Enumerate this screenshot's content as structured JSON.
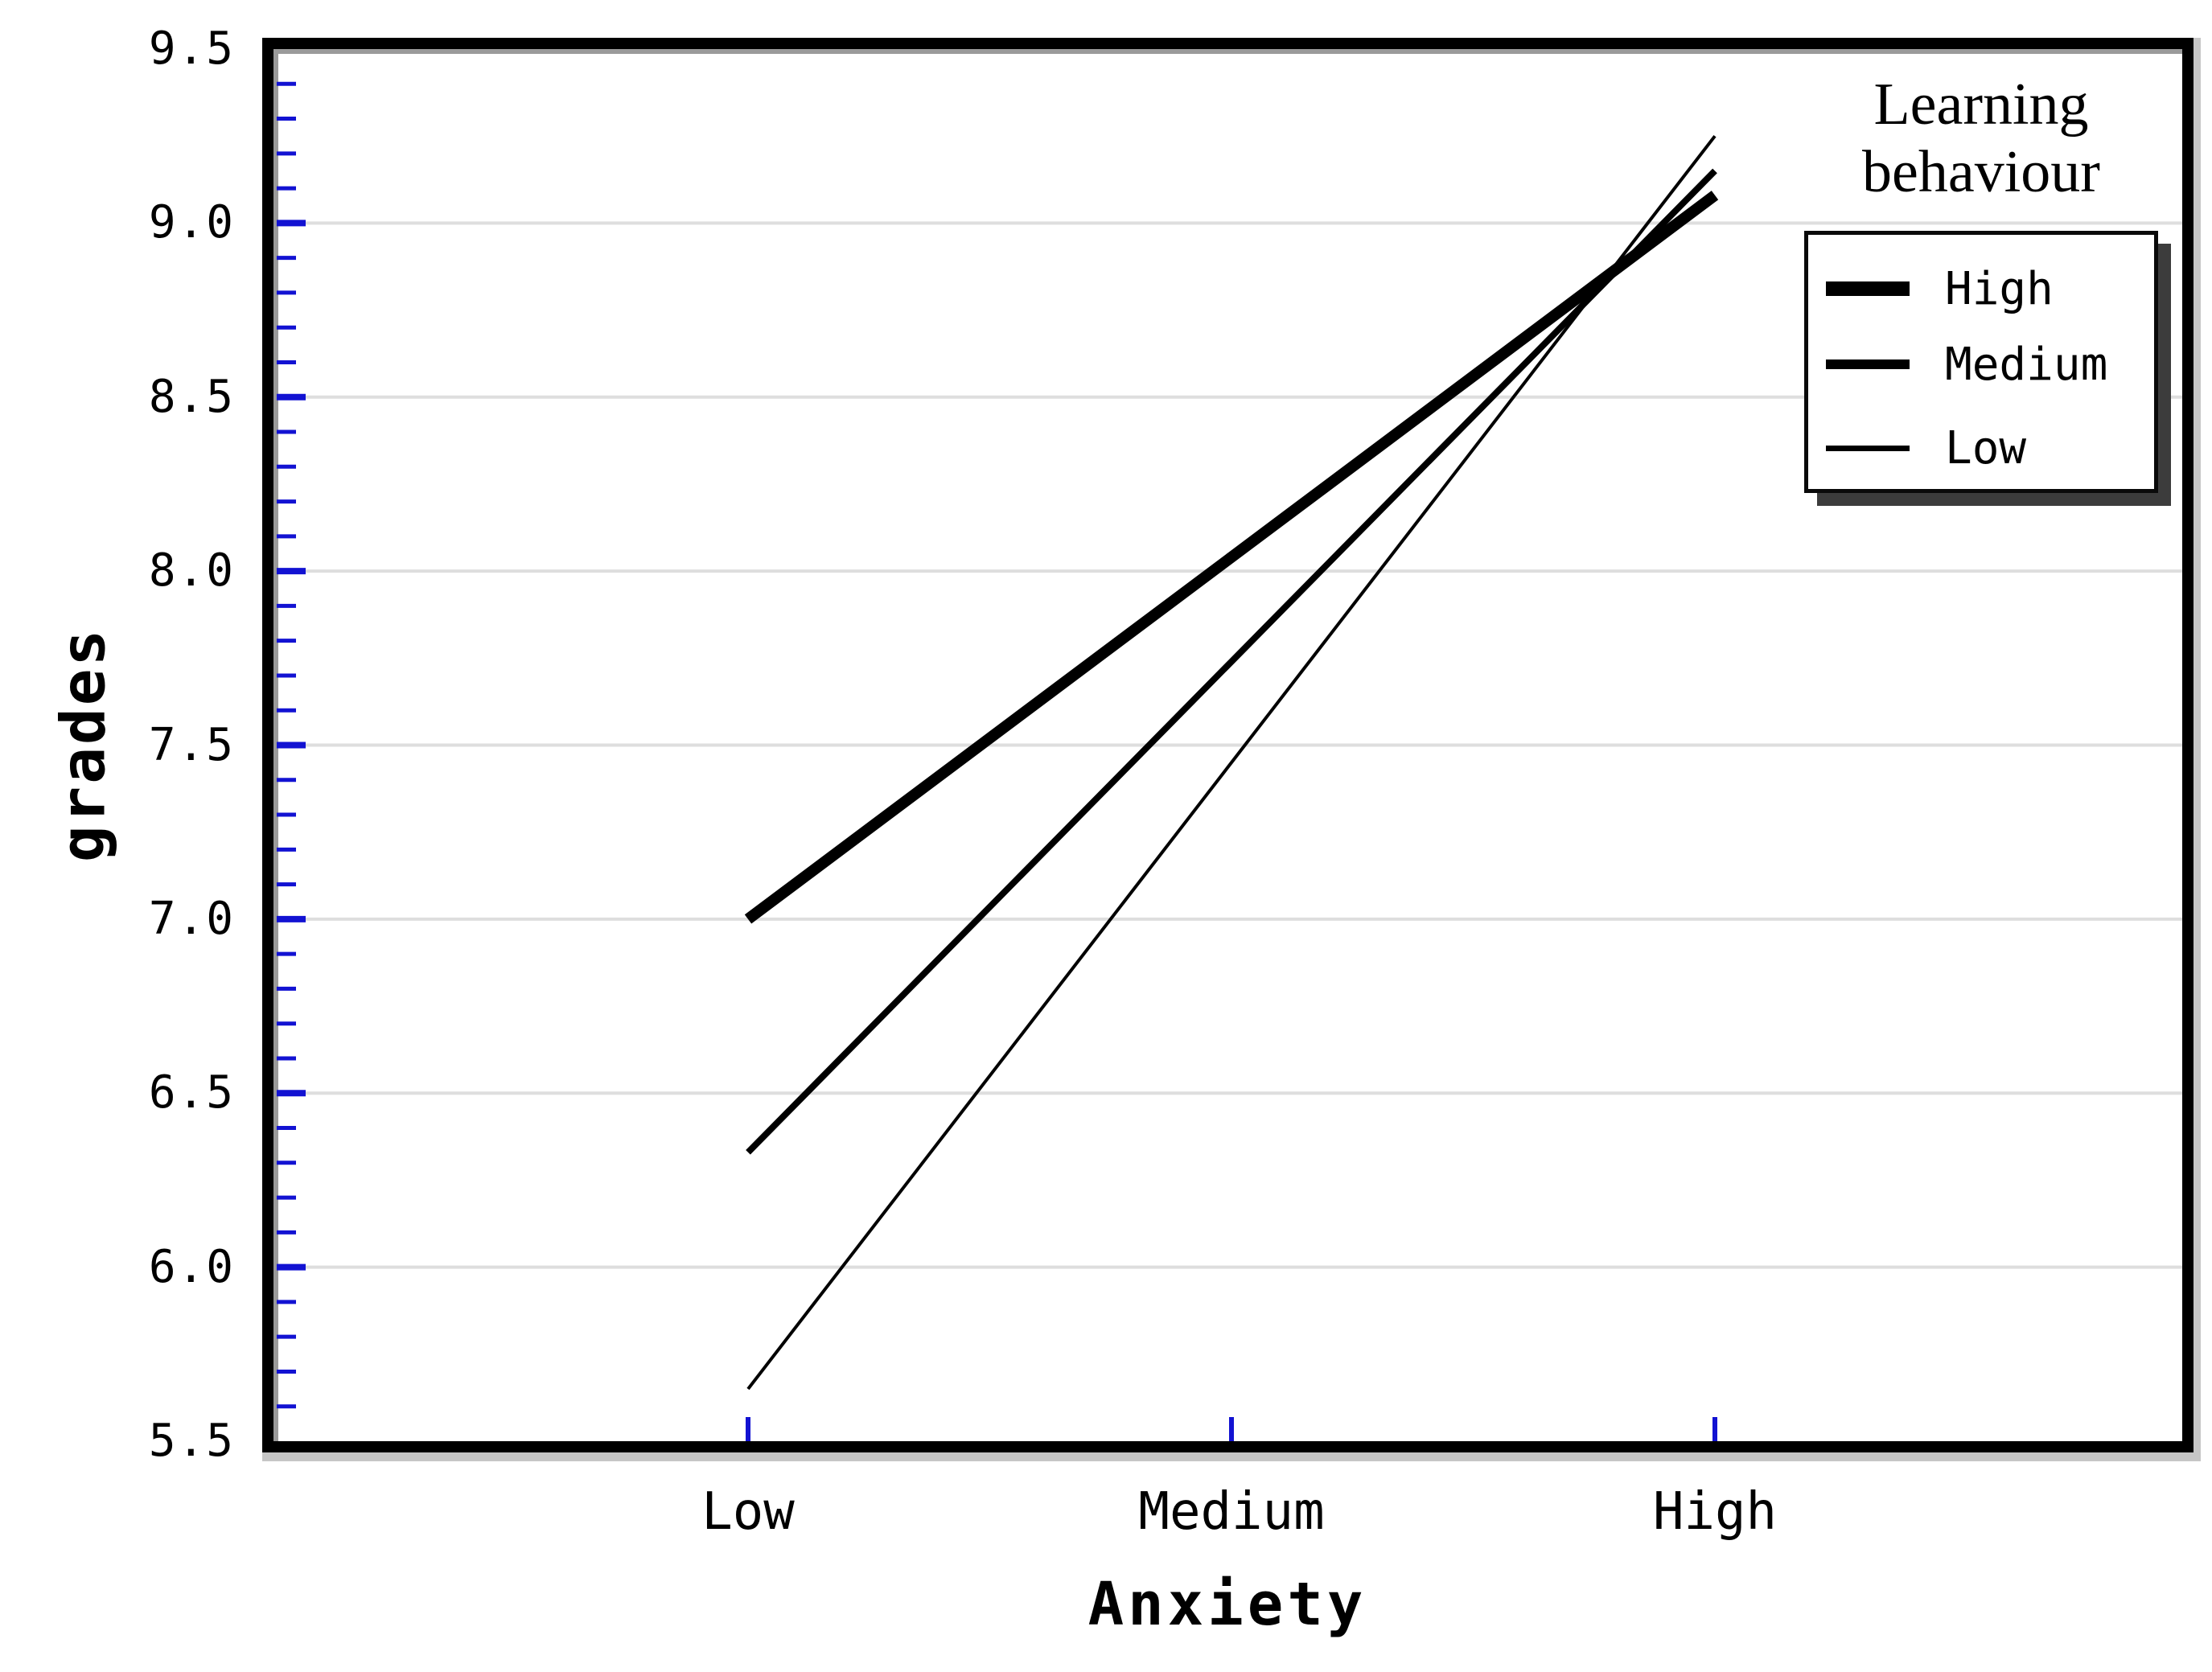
{
  "page": {
    "background": "#ffffff"
  },
  "chart_data": {
    "type": "line",
    "title": "",
    "xlabel": "Anxiety",
    "ylabel": "grades",
    "categories": [
      "Low",
      "Medium",
      "High"
    ],
    "series": [
      {
        "name": "High",
        "values": [
          7.0,
          8.04,
          9.08
        ],
        "line_width": 14
      },
      {
        "name": "Medium",
        "values": [
          6.33,
          7.74,
          9.15
        ],
        "line_width": 8
      },
      {
        "name": "Low",
        "values": [
          5.65,
          7.45,
          9.25
        ],
        "line_width": 4
      }
    ],
    "ylim": [
      5.5,
      9.5
    ],
    "yticks": [
      9.5,
      9.0,
      8.5,
      8.0,
      7.5,
      7.0,
      6.5,
      6.0,
      5.5
    ],
    "ytick_labels": [
      "9.5",
      "9.0",
      "8.5",
      "8.0",
      "7.5",
      "7.0",
      "6.5",
      "6.0",
      "5.5"
    ],
    "minor_tick_step": 0.1,
    "grid": "horizontal gridlines at major ticks",
    "legend_position": "top-right inside plot",
    "colors": {
      "line": "#000000",
      "tick": "#1212d2",
      "gridline": "#dedede",
      "frame": "#000000",
      "frame_bevel": "#9a9a9a",
      "frame_shadow": "#c6c6c6"
    }
  },
  "legend": {
    "title_line1": "Learning",
    "title_line2": "behaviour",
    "items": [
      {
        "label": "High"
      },
      {
        "label": "Medium"
      },
      {
        "label": "Low"
      }
    ]
  }
}
